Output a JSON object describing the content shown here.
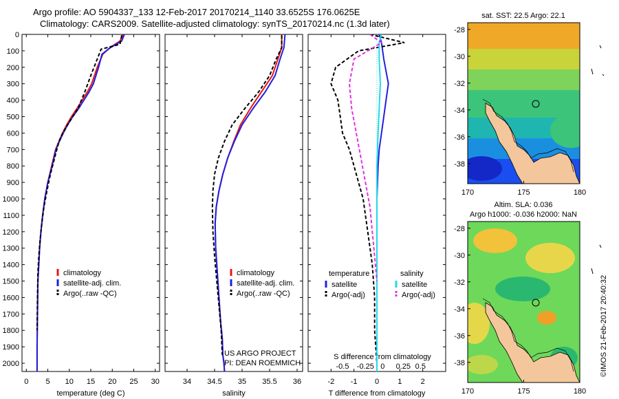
{
  "header": {
    "line1": "Argo profile: AO 5904337_133 12-Feb-2017 20170214_1140 33.6525S 176.0625E",
    "line2": "Climatology: CARS2009. Satellite-adjusted climatology: synTS_20170214.nc (1.3d later)"
  },
  "credit": "©IMOS 21-Feb-2017 20:40:32",
  "project": {
    "line1": "US ARGO PROJECT",
    "line2": "PI: DEAN ROEMMICH"
  },
  "colors": {
    "clim": "#e8140e",
    "sat": "#1f1fe0",
    "argo": "#000000",
    "sal_sat": "#22d8e8",
    "sal_argo": "#e030e0"
  },
  "chart_data": [
    {
      "type": "line",
      "panel": "temperature",
      "xlabel": "temperature (deg C)",
      "xlim": [
        -1,
        31
      ],
      "ylim": [
        2050,
        0
      ],
      "y_reversed": true,
      "xticks": [
        0,
        5,
        10,
        15,
        20,
        25,
        30
      ],
      "yticks": [
        0,
        100,
        200,
        300,
        400,
        500,
        600,
        700,
        800,
        900,
        1000,
        1100,
        1200,
        1300,
        1400,
        1500,
        1600,
        1700,
        1800,
        1900,
        2000
      ],
      "legend": [
        "climatology",
        "satellite-adj. clim.",
        "Argo(..raw -QC)"
      ],
      "series": [
        {
          "name": "climatology",
          "color_key": "clim",
          "dash": false,
          "x": [
            22.5,
            21.8,
            19.5,
            17.8,
            16.5,
            15.2,
            14.2,
            13.0,
            11.8,
            10.5,
            9.4,
            8.4,
            7.6,
            6.8,
            5.9,
            5.0,
            4.3,
            3.8,
            3.4,
            3.1,
            2.9,
            2.7,
            2.6,
            2.5,
            2.5
          ],
          "y": [
            0,
            40,
            80,
            120,
            200,
            300,
            350,
            400,
            450,
            500,
            550,
            600,
            650,
            700,
            800,
            900,
            1000,
            1100,
            1200,
            1300,
            1400,
            1500,
            1700,
            1900,
            2050
          ]
        },
        {
          "name": "satellite-adj. clim.",
          "color_key": "sat",
          "dash": false,
          "x": [
            22.8,
            22.2,
            19.6,
            17.6,
            16.8,
            15.6,
            14.6,
            13.4,
            12.2,
            10.8,
            9.6,
            8.6,
            7.7,
            6.9,
            6.0,
            5.0,
            4.3,
            3.8,
            3.4,
            3.1,
            2.9,
            2.7,
            2.6,
            2.5,
            2.5
          ],
          "y": [
            0,
            40,
            80,
            120,
            200,
            300,
            350,
            400,
            450,
            500,
            550,
            600,
            650,
            700,
            800,
            900,
            1000,
            1100,
            1200,
            1300,
            1400,
            1500,
            1700,
            1900,
            2050
          ]
        },
        {
          "name": "Argo(..raw -QC)",
          "color_key": "argo",
          "dash": true,
          "x": [
            22.2,
            21.8,
            17.4,
            16.5,
            15.0,
            13.6,
            12.0,
            10.8,
            9.6,
            8.5,
            7.6,
            6.6,
            5.6,
            4.8,
            4.1,
            3.6,
            3.2,
            2.9,
            2.7,
            2.6,
            2.5
          ],
          "y": [
            5,
            60,
            90,
            150,
            250,
            350,
            450,
            500,
            550,
            600,
            650,
            750,
            850,
            950,
            1050,
            1150,
            1250,
            1350,
            1450,
            1600,
            1800
          ]
        }
      ]
    },
    {
      "type": "line",
      "panel": "salinity",
      "xlabel": "salinity",
      "xlim": [
        33.6,
        36.1
      ],
      "ylim": [
        2050,
        0
      ],
      "y_reversed": true,
      "xticks": [
        34,
        34.5,
        35,
        35.5,
        36
      ],
      "xticklabels": [
        "34",
        "34.5",
        "35",
        "35.5",
        "36"
      ],
      "legend": [
        "climatology",
        "satellite-adj. clim.",
        "Argo(..raw -QC)"
      ],
      "series": [
        {
          "name": "climatology",
          "color_key": "clim",
          "dash": false,
          "x": [
            35.72,
            35.72,
            35.65,
            35.55,
            35.35,
            35.15,
            34.97,
            34.85,
            34.74,
            34.65,
            34.58,
            34.53,
            34.51,
            34.52,
            34.55,
            34.58,
            34.61,
            34.64,
            34.65,
            34.67,
            34.68
          ],
          "y": [
            0,
            80,
            150,
            250,
            350,
            450,
            550,
            650,
            750,
            850,
            950,
            1050,
            1150,
            1300,
            1450,
            1600,
            1750,
            1850,
            1950,
            2000,
            2050
          ]
        },
        {
          "name": "satellite-adj. clim.",
          "color_key": "sat",
          "dash": false,
          "x": [
            35.78,
            35.76,
            35.69,
            35.6,
            35.42,
            35.2,
            35.0,
            34.86,
            34.74,
            34.65,
            34.58,
            34.53,
            34.51,
            34.52,
            34.55,
            34.58,
            34.61,
            34.64,
            34.65,
            34.67,
            34.68
          ],
          "y": [
            0,
            80,
            150,
            250,
            350,
            450,
            550,
            650,
            750,
            850,
            950,
            1050,
            1150,
            1300,
            1450,
            1600,
            1750,
            1850,
            1950,
            2000,
            2050
          ]
        },
        {
          "name": "Argo(..raw -QC)",
          "color_key": "argo",
          "dash": true,
          "x": [
            35.72,
            35.72,
            35.62,
            35.5,
            35.3,
            35.05,
            34.82,
            34.68,
            34.57,
            34.5,
            34.47,
            34.46,
            34.47,
            34.5,
            34.54,
            34.58,
            34.62,
            34.64
          ],
          "y": [
            5,
            80,
            150,
            250,
            350,
            450,
            550,
            650,
            750,
            850,
            950,
            1050,
            1200,
            1350,
            1500,
            1650,
            1800,
            1950
          ]
        }
      ]
    },
    {
      "type": "line",
      "panel": "difference",
      "xlabel": "T difference from climatology",
      "xlabel_top": "S difference from climatology",
      "xlim": [
        -3,
        3
      ],
      "ylim": [
        2050,
        0
      ],
      "y_reversed": true,
      "xticks": [
        -2,
        -1,
        0,
        1,
        2
      ],
      "xticklabels": [
        "-2",
        "-1",
        "0",
        "1",
        "2"
      ],
      "s_ticklabels": [
        "-0.5",
        "-0.25",
        "0",
        "0.25",
        "0.5"
      ],
      "legend": {
        "temperature": [
          "satellite",
          "Argo(-adj)"
        ],
        "salinity": [
          "satellite",
          "Argo(-adj)"
        ],
        "headings": [
          "temperature",
          "salinity"
        ]
      },
      "series": [
        {
          "name": "satellite",
          "group": "temperature",
          "color_key": "sat",
          "dash": false,
          "x": [
            0.1,
            0.2,
            0.3,
            0.5,
            0.4,
            0.3,
            0.2,
            0.1,
            0.05,
            0.0,
            0.0,
            0.0,
            0.0
          ],
          "y": [
            0,
            50,
            150,
            300,
            400,
            500,
            600,
            700,
            800,
            1000,
            1300,
            1600,
            2050
          ]
        },
        {
          "name": "Argo(-adj)",
          "group": "temperature",
          "color_key": "argo",
          "dash": true,
          "x": [
            -0.3,
            1.2,
            -0.8,
            -1.8,
            -2.0,
            -1.7,
            -1.6,
            -1.5,
            -1.2,
            -1.0,
            -0.8,
            -0.6,
            -0.5,
            -0.4,
            -0.3,
            -0.2,
            -0.1,
            -0.1,
            0.0
          ],
          "y": [
            0,
            50,
            100,
            200,
            300,
            400,
            500,
            600,
            700,
            800,
            900,
            1000,
            1100,
            1200,
            1300,
            1400,
            1600,
            1800,
            2000
          ]
        },
        {
          "name": "satellite",
          "group": "salinity",
          "color_key": "sal_sat",
          "dash": false,
          "x": [
            0.2,
            0.1,
            0.1,
            0.15,
            0.1,
            0.05,
            0.0,
            0.0,
            0.0
          ],
          "y": [
            0,
            50,
            150,
            300,
            450,
            600,
            800,
            1200,
            2050
          ]
        },
        {
          "name": "Argo(-adj)",
          "group": "salinity",
          "color_key": "sal_argo",
          "dash": true,
          "x": [
            -0.3,
            0.2,
            -1.0,
            -1.2,
            -1.1,
            -0.9,
            -0.7,
            -0.5,
            -0.3,
            -0.2,
            -0.1,
            0.0
          ],
          "y": [
            0,
            50,
            150,
            300,
            450,
            600,
            750,
            900,
            1050,
            1200,
            1350,
            1500
          ]
        }
      ]
    },
    {
      "type": "heatmap",
      "panel": "map-sst",
      "title": "sat. SST: 22.5  Argo: 22.1",
      "xlim": [
        170,
        180
      ],
      "ylim": [
        -39.5,
        -27.5
      ],
      "xticks": [
        170,
        175,
        180
      ],
      "yticks": [
        -28,
        -30,
        -32,
        -34,
        -36,
        -38
      ],
      "marker": {
        "lon": 176.0625,
        "lat": -33.6525
      }
    },
    {
      "type": "heatmap",
      "panel": "map-sla",
      "title": "Altim. SLA: 0.036",
      "subtitle": "Argo h1000: -0.036  h2000: NaN",
      "xlim": [
        170,
        180
      ],
      "ylim": [
        -39.5,
        -27.5
      ],
      "xticks": [
        170,
        175,
        180
      ],
      "yticks": [
        -28,
        -30,
        -32,
        -34,
        -36,
        -38
      ],
      "marker": {
        "lon": 176.0625,
        "lat": -33.6525
      }
    }
  ]
}
